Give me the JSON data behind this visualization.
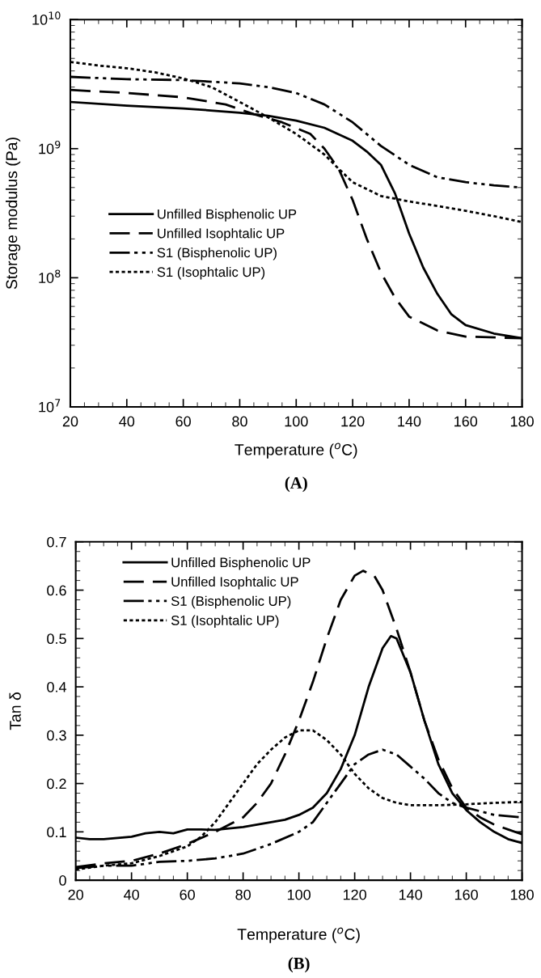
{
  "chart_data": [
    {
      "type": "line",
      "xlabel": "Temperature ($^{o}$C)",
      "ylabel": "Storage modulus (Pa)",
      "log": "y",
      "xlim": [
        20,
        180
      ],
      "xticks": [
        20,
        40,
        60,
        80,
        100,
        120,
        140,
        160,
        180
      ],
      "ylim": [
        10000000.0,
        10000000000.0
      ],
      "yticks": [
        {
          "value": 10000000.0,
          "label": "10$^{7}$"
        },
        {
          "value": 100000000.0,
          "label": "10$^{8}$"
        },
        {
          "value": 1000000000.0,
          "label": "10$^{9}$"
        },
        {
          "value": 10000000000.0,
          "label": "10$^{10}$"
        }
      ],
      "grid": false,
      "legend": "left",
      "annotations": [
        "(A)"
      ],
      "series": [
        {
          "name": "Unfilled Bisphenolic UP",
          "color": "#000000",
          "line_style": "solid",
          "x": [
            20,
            40,
            60,
            80,
            90,
            100,
            110,
            120,
            125,
            130,
            135,
            140,
            145,
            150,
            155,
            160,
            170,
            180
          ],
          "values": [
            2300000000.0,
            2150000000.0,
            2050000000.0,
            1900000000.0,
            1800000000.0,
            1650000000.0,
            1450000000.0,
            1150000000.0,
            950000000.0,
            750000000.0,
            450000000.0,
            220000000.0,
            120000000.0,
            75000000.0,
            52000000.0,
            43000000.0,
            37000000.0,
            34000000.0
          ]
        },
        {
          "name": "Unfilled Isophtalic UP",
          "color": "#000000",
          "line_style": "dashed",
          "x": [
            20,
            40,
            60,
            75,
            85,
            95,
            105,
            110,
            115,
            120,
            125,
            130,
            135,
            140,
            150,
            160,
            180
          ],
          "values": [
            2850000000.0,
            2700000000.0,
            2500000000.0,
            2200000000.0,
            1850000000.0,
            1600000000.0,
            1300000000.0,
            1000000000.0,
            700000000.0,
            400000000.0,
            200000000.0,
            110000000.0,
            70000000.0,
            50000000.0,
            39000000.0,
            35000000.0,
            34000000.0
          ]
        },
        {
          "name": "S1 (Bisphenolic UP)",
          "color": "#000000",
          "line_style": "dashdot",
          "x": [
            20,
            40,
            60,
            80,
            90,
            100,
            110,
            120,
            130,
            140,
            150,
            160,
            170,
            180
          ],
          "values": [
            3600000000.0,
            3450000000.0,
            3400000000.0,
            3200000000.0,
            3000000000.0,
            2700000000.0,
            2200000000.0,
            1600000000.0,
            1050000000.0,
            750000000.0,
            600000000.0,
            550000000.0,
            520000000.0,
            500000000.0
          ]
        },
        {
          "name": "S1 (Isophtalic UP)",
          "color": "#000000",
          "line_style": "dotted",
          "x": [
            20,
            30,
            40,
            50,
            60,
            70,
            80,
            90,
            100,
            110,
            115,
            120,
            130,
            140,
            150,
            160,
            170,
            180
          ],
          "values": [
            4700000000.0,
            4400000000.0,
            4200000000.0,
            3900000000.0,
            3500000000.0,
            3000000000.0,
            2300000000.0,
            1750000000.0,
            1300000000.0,
            900000000.0,
            700000000.0,
            550000000.0,
            430000000.0,
            390000000.0,
            360000000.0,
            330000000.0,
            300000000.0,
            270000000.0
          ]
        }
      ]
    },
    {
      "type": "line",
      "xlabel": "Temperature ($^{o}$C)",
      "ylabel": "Tan δ",
      "xlim": [
        20,
        180
      ],
      "xticks": [
        20,
        40,
        60,
        80,
        100,
        120,
        140,
        160,
        180
      ],
      "ylim": [
        0,
        0.7
      ],
      "yticks": [
        0,
        0.1,
        0.2,
        0.3,
        0.4,
        0.5,
        0.6,
        0.7
      ],
      "grid": false,
      "legend": "top left",
      "annotations": [
        "(B)"
      ],
      "series": [
        {
          "name": "Unfilled Bisphenolic UP",
          "color": "#000000",
          "line_style": "solid",
          "x": [
            20,
            25,
            30,
            40,
            45,
            50,
            55,
            60,
            65,
            70,
            80,
            85,
            90,
            95,
            100,
            105,
            110,
            115,
            120,
            125,
            130,
            133,
            135,
            140,
            145,
            150,
            155,
            160,
            165,
            170,
            175,
            180
          ],
          "values": [
            0.088,
            0.085,
            0.085,
            0.09,
            0.097,
            0.1,
            0.097,
            0.105,
            0.105,
            0.104,
            0.11,
            0.115,
            0.12,
            0.125,
            0.135,
            0.15,
            0.18,
            0.23,
            0.3,
            0.4,
            0.48,
            0.505,
            0.5,
            0.43,
            0.33,
            0.24,
            0.18,
            0.145,
            0.12,
            0.1,
            0.085,
            0.077
          ]
        },
        {
          "name": "Unfilled Isophtalic UP",
          "color": "#000000",
          "line_style": "dashed",
          "x": [
            20,
            30,
            40,
            50,
            60,
            70,
            80,
            85,
            90,
            95,
            100,
            105,
            110,
            115,
            120,
            123,
            127,
            130,
            135,
            140,
            145,
            150,
            155,
            160,
            165,
            170,
            175,
            180
          ],
          "values": [
            0.027,
            0.035,
            0.04,
            0.055,
            0.075,
            0.1,
            0.13,
            0.16,
            0.2,
            0.26,
            0.33,
            0.41,
            0.5,
            0.58,
            0.63,
            0.64,
            0.63,
            0.6,
            0.52,
            0.43,
            0.33,
            0.25,
            0.19,
            0.15,
            0.13,
            0.115,
            0.105,
            0.095
          ]
        },
        {
          "name": "S1 (Bisphenolic UP)",
          "color": "#000000",
          "line_style": "dashdot",
          "x": [
            20,
            30,
            40,
            50,
            60,
            70,
            80,
            90,
            100,
            105,
            110,
            115,
            120,
            125,
            130,
            135,
            140,
            145,
            150,
            155,
            160,
            170,
            180
          ],
          "values": [
            0.025,
            0.03,
            0.03,
            0.038,
            0.04,
            0.045,
            0.055,
            0.075,
            0.1,
            0.12,
            0.16,
            0.2,
            0.24,
            0.26,
            0.27,
            0.26,
            0.235,
            0.21,
            0.18,
            0.16,
            0.15,
            0.135,
            0.13
          ]
        },
        {
          "name": "S1 (Isophtalic UP)",
          "color": "#000000",
          "line_style": "dotted",
          "x": [
            20,
            30,
            40,
            50,
            60,
            65,
            70,
            75,
            80,
            85,
            90,
            95,
            100,
            105,
            110,
            115,
            120,
            125,
            130,
            135,
            140,
            150,
            160,
            170,
            180
          ],
          "values": [
            0.022,
            0.03,
            0.035,
            0.05,
            0.07,
            0.09,
            0.12,
            0.16,
            0.2,
            0.24,
            0.27,
            0.295,
            0.31,
            0.31,
            0.29,
            0.26,
            0.22,
            0.19,
            0.17,
            0.16,
            0.155,
            0.155,
            0.157,
            0.16,
            0.162
          ]
        }
      ]
    }
  ]
}
